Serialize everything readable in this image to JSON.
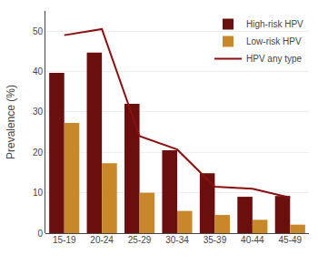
{
  "chart_data": {
    "type": "bar",
    "ylabel": "Prevalence (%)",
    "categories": [
      "15-19",
      "20-24",
      "25-29",
      "30-34",
      "35-39",
      "40-44",
      "45-49"
    ],
    "series": [
      {
        "name": "High-risk HPV",
        "type": "bar",
        "color": "#6B0E0E",
        "values": [
          39.7,
          44.7,
          32.0,
          20.5,
          14.8,
          9.0,
          9.2
        ]
      },
      {
        "name": "Low-risk HPV",
        "type": "bar",
        "color": "#C8882A",
        "values": [
          27.3,
          17.3,
          10.0,
          5.5,
          4.5,
          3.3,
          2.1
        ]
      },
      {
        "name": "HPV any type",
        "type": "line",
        "color": "#8B1010",
        "values": [
          49.0,
          50.5,
          24.0,
          20.7,
          11.5,
          11.0,
          8.8
        ]
      }
    ],
    "ylim": [
      0,
      55
    ],
    "yticks": [
      0,
      10,
      20,
      30,
      40,
      50
    ],
    "grid": true,
    "legend": "upper right"
  }
}
